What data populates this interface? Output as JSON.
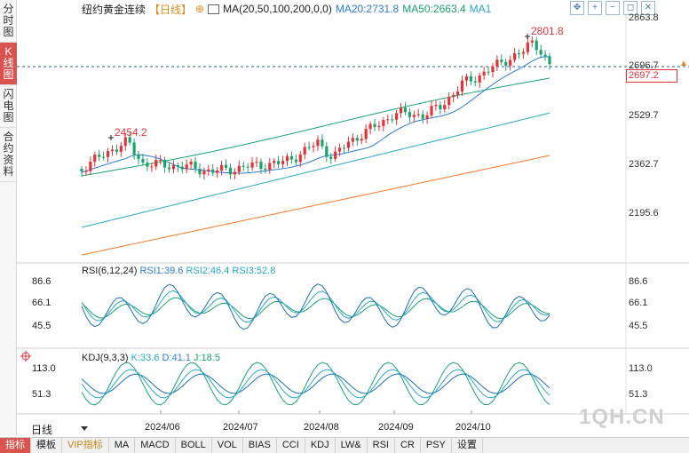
{
  "left_tabs": [
    {
      "label": "分时图",
      "active": false
    },
    {
      "label": "K线图",
      "active": true
    },
    {
      "label": "闪电图",
      "active": false
    },
    {
      "label": "合约资料",
      "active": false
    }
  ],
  "header": {
    "symbol": "纽约黄金连续",
    "period": "【日线】",
    "ma_params": "MA(20,50,100,200,0,0)",
    "ma20": "MA20:2731.8",
    "ma50": "MA50:2663.4",
    "ma1": "MA1"
  },
  "toolbar_icons": [
    "move-icon",
    "zoom-in-icon",
    "zoom-out-icon",
    "reset-icon",
    "close-icon"
  ],
  "price_axis": {
    "main": [
      "2863.8",
      "2696.7",
      "2529.7",
      "2362.7",
      "2195.6"
    ],
    "last_price": "2697.2",
    "rsi": [
      "86.6",
      "66.1",
      "45.5"
    ],
    "kdj": [
      "113.0",
      "51.3"
    ]
  },
  "annotations": {
    "high_label": "2801.8",
    "low_label": "2454.2"
  },
  "rsi_header": {
    "name": "RSI(6,12,24)",
    "rsi1": "RSI1:39.6",
    "rsi2": "RSI2:46.4",
    "rsi3": "RSI3:52.8"
  },
  "kdj_header": {
    "name": "KDJ(9,3,3)",
    "k": "K:33.6",
    "d": "D:41.1",
    "j": "J:18.5"
  },
  "x_axis_labels": [
    "2024/06",
    "2024/07",
    "2024/08",
    "2024/09",
    "2024/10"
  ],
  "period_select": "日线",
  "bottom_tabs": [
    {
      "label": "指标",
      "active": true
    },
    {
      "label": "模板",
      "active": false
    },
    {
      "label": "VIP指标",
      "active": false,
      "vip": true
    },
    {
      "label": "MA",
      "active": false
    },
    {
      "label": "MACD",
      "active": false
    },
    {
      "label": "BOLL",
      "active": false
    },
    {
      "label": "VOL",
      "active": false
    },
    {
      "label": "BIAS",
      "active": false
    },
    {
      "label": "CCI",
      "active": false
    },
    {
      "label": "KDJ",
      "active": false
    },
    {
      "label": "LW&",
      "active": false
    },
    {
      "label": "RSI",
      "active": false
    },
    {
      "label": "CR",
      "active": false
    },
    {
      "label": "PSY",
      "active": false
    },
    {
      "label": "设置",
      "active": false
    }
  ],
  "watermark": "1QH.CN",
  "colors": {
    "up": "#e2333b",
    "down": "#1aa36b",
    "ma20": "#2b7bd6",
    "ma50": "#1aa36b",
    "ma100": "#2aa7c9",
    "ma200": "#f07a2a",
    "rsi1": "#1f6fb8",
    "rsi2": "#2aa7c9",
    "rsi3": "#1aa36b"
  }
}
